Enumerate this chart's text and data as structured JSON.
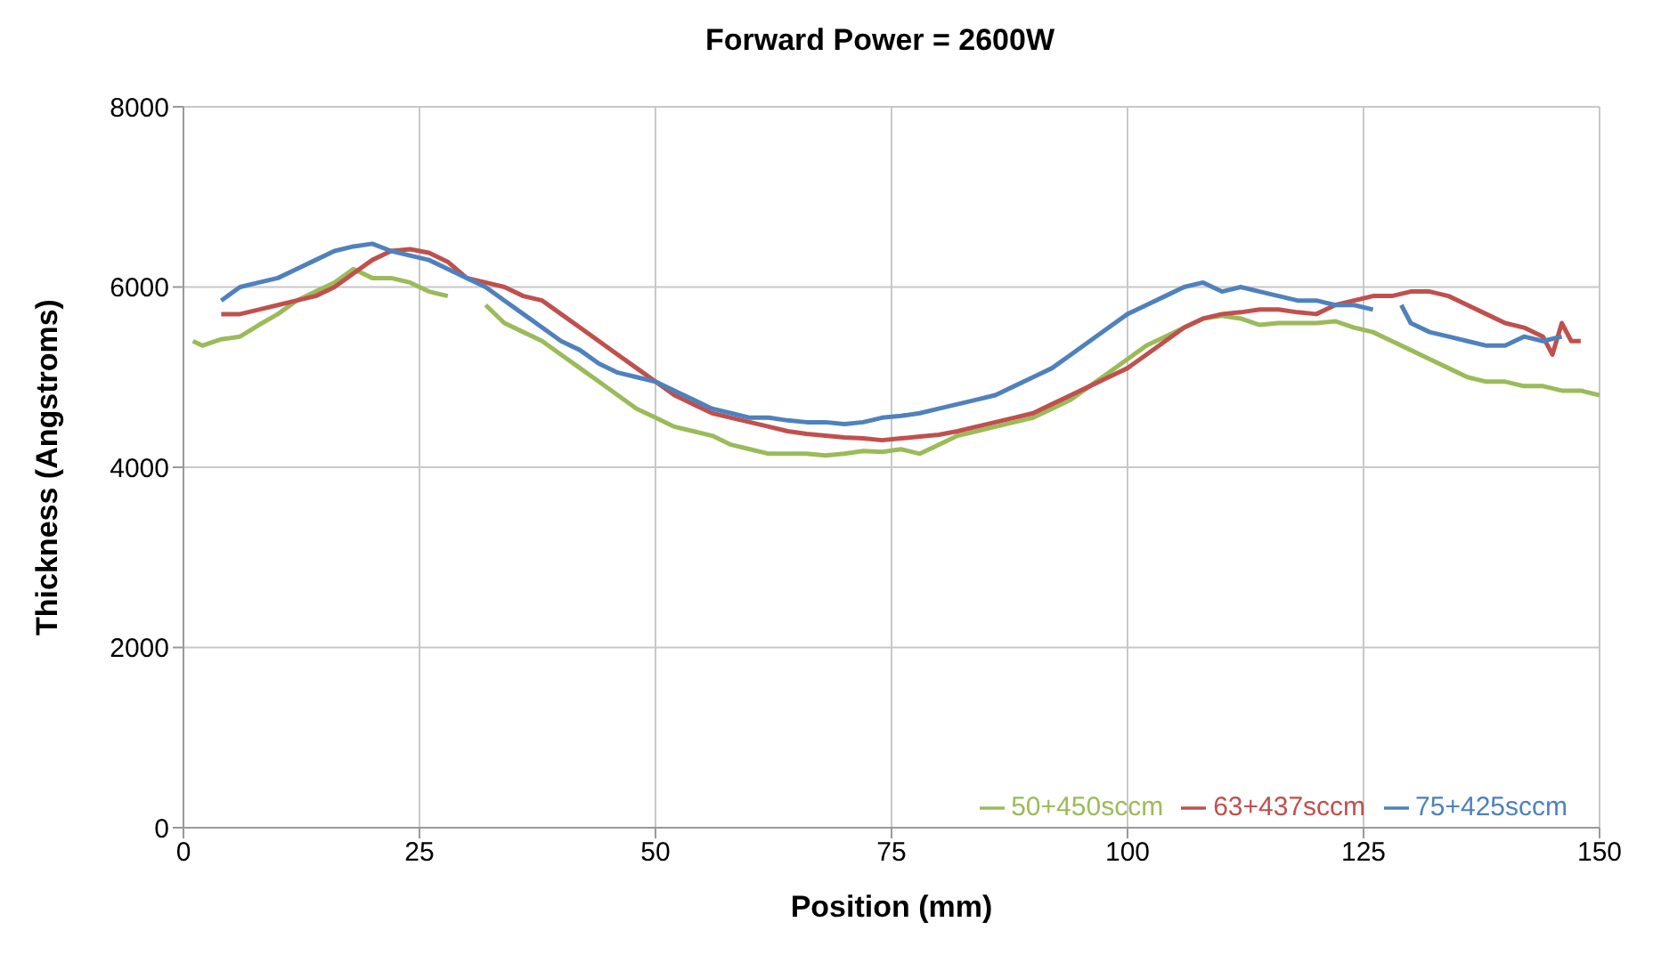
{
  "chart_data": {
    "type": "line",
    "title": "Forward Power = 2600W",
    "xlabel": "Position (mm)",
    "ylabel": "Thickness (Angstroms)",
    "xlim": [
      0,
      150
    ],
    "xticks": [
      0,
      25,
      50,
      75,
      100,
      125,
      150
    ],
    "ylim": [
      0,
      8000
    ],
    "yticks": [
      0,
      2000,
      4000,
      6000,
      8000
    ],
    "grid": true,
    "legend": "bottom right",
    "marker": "none",
    "line_style": "solid",
    "series": [
      {
        "name": "50+450sccm",
        "color": "#9bbb59",
        "x": [
          1,
          2,
          4,
          6,
          8,
          10,
          12,
          14,
          16,
          18,
          20,
          22,
          24,
          26,
          28,
          30,
          32,
          34,
          36,
          38,
          40,
          42,
          44,
          46,
          48,
          50,
          52,
          54,
          56,
          58,
          60,
          62,
          64,
          66,
          68,
          70,
          72,
          74,
          76,
          78,
          80,
          82,
          84,
          86,
          88,
          90,
          92,
          94,
          96,
          98,
          100,
          102,
          104,
          106,
          108,
          110,
          112,
          114,
          116,
          118,
          120,
          122,
          124,
          126,
          128,
          130,
          132,
          134,
          136,
          138,
          140,
          142,
          144,
          146,
          148,
          150
        ],
        "values": [
          5400,
          5350,
          5420,
          5450,
          5580,
          5700,
          5850,
          5950,
          6050,
          6200,
          6100,
          6100,
          6050,
          5950,
          5900,
          null,
          5800,
          5600,
          5500,
          5400,
          5250,
          5100,
          4950,
          4800,
          4650,
          4550,
          4450,
          4400,
          4350,
          4250,
          4200,
          4150,
          4150,
          4150,
          4130,
          4150,
          4180,
          4170,
          4200,
          4150,
          4250,
          4350,
          4400,
          4450,
          4500,
          4550,
          4650,
          4750,
          4900,
          5050,
          5200,
          5350,
          5450,
          5550,
          5650,
          5680,
          5650,
          5580,
          5600,
          5600,
          5600,
          5620,
          5550,
          5500,
          5400,
          5300,
          5200,
          5100,
          5000,
          4950,
          4950,
          4900,
          4900,
          4850,
          4850,
          4800
        ]
      },
      {
        "name": "63+437sccm",
        "color": "#c0504d",
        "x": [
          4,
          6,
          8,
          10,
          12,
          14,
          16,
          18,
          20,
          22,
          24,
          26,
          28,
          30,
          32,
          34,
          36,
          38,
          40,
          42,
          44,
          46,
          48,
          50,
          52,
          54,
          56,
          58,
          60,
          62,
          64,
          66,
          68,
          70,
          72,
          74,
          76,
          78,
          80,
          82,
          84,
          86,
          88,
          90,
          92,
          94,
          96,
          98,
          100,
          102,
          104,
          106,
          108,
          110,
          112,
          114,
          116,
          118,
          120,
          122,
          124,
          126,
          128,
          130,
          132,
          134,
          136,
          138,
          140,
          142,
          144,
          145,
          146,
          147,
          148
        ],
        "values": [
          5700,
          5700,
          5750,
          5800,
          5850,
          5900,
          6000,
          6150,
          6300,
          6400,
          6420,
          6380,
          6280,
          6100,
          6050,
          6000,
          5900,
          5850,
          5700,
          5550,
          5400,
          5250,
          5100,
          4950,
          4800,
          4700,
          4600,
          4550,
          4500,
          4450,
          4400,
          4370,
          4350,
          4330,
          4320,
          4300,
          4320,
          4340,
          4360,
          4400,
          4450,
          4500,
          4550,
          4600,
          4700,
          4800,
          4900,
          5000,
          5100,
          5250,
          5400,
          5550,
          5650,
          5700,
          5720,
          5750,
          5750,
          5720,
          5700,
          5800,
          5850,
          5900,
          5900,
          5950,
          5950,
          5900,
          5800,
          5700,
          5600,
          5550,
          5450,
          5250,
          5600,
          5400,
          5400
        ]
      },
      {
        "name": "75+425sccm",
        "color": "#4f81bd",
        "x": [
          4,
          6,
          8,
          10,
          12,
          14,
          16,
          18,
          20,
          22,
          24,
          26,
          28,
          30,
          32,
          34,
          36,
          38,
          40,
          42,
          44,
          46,
          48,
          50,
          52,
          54,
          56,
          58,
          60,
          62,
          64,
          66,
          68,
          70,
          72,
          74,
          76,
          78,
          80,
          82,
          84,
          86,
          88,
          90,
          92,
          94,
          96,
          98,
          100,
          102,
          104,
          106,
          108,
          110,
          112,
          114,
          116,
          118,
          120,
          122,
          124,
          126,
          128,
          129,
          130,
          132,
          134,
          136,
          138,
          140,
          142,
          144,
          146
        ],
        "values": [
          5850,
          6000,
          6050,
          6100,
          6200,
          6300,
          6400,
          6450,
          6480,
          6400,
          6350,
          6300,
          6200,
          6100,
          6000,
          5850,
          5700,
          5550,
          5400,
          5300,
          5150,
          5050,
          5000,
          4950,
          4850,
          4750,
          4650,
          4600,
          4550,
          4550,
          4520,
          4500,
          4500,
          4480,
          4500,
          4550,
          4570,
          4600,
          4650,
          4700,
          4750,
          4800,
          4900,
          5000,
          5100,
          5250,
          5400,
          5550,
          5700,
          5800,
          5900,
          6000,
          6050,
          5950,
          6000,
          5950,
          5900,
          5850,
          5850,
          5800,
          5800,
          5750,
          null,
          5800,
          5600,
          5500,
          5450,
          5400,
          5350,
          5350,
          5450,
          5400,
          5450
        ]
      }
    ]
  }
}
